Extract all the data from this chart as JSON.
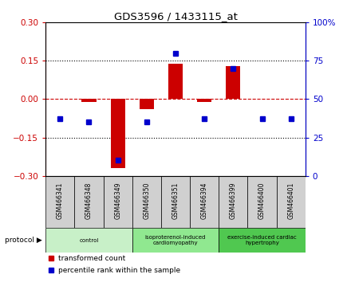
{
  "title": "GDS3596 / 1433115_at",
  "samples": [
    "GSM466341",
    "GSM466348",
    "GSM466349",
    "GSM466350",
    "GSM466351",
    "GSM466394",
    "GSM466399",
    "GSM466400",
    "GSM466401"
  ],
  "transformed_count": [
    0.0,
    -0.01,
    -0.27,
    -0.04,
    0.14,
    -0.01,
    0.13,
    0.0,
    0.0
  ],
  "percentile_rank": [
    37,
    35,
    10,
    35,
    80,
    37,
    70,
    37,
    37
  ],
  "groups": [
    {
      "label": "control",
      "start": 0,
      "end": 3,
      "color": "#c8f0c8"
    },
    {
      "label": "isoproterenol-induced\ncardiomyopathy",
      "start": 3,
      "end": 6,
      "color": "#90e890"
    },
    {
      "label": "exercise-induced cardiac\nhypertrophy",
      "start": 6,
      "end": 9,
      "color": "#50c850"
    }
  ],
  "bar_color": "#cc0000",
  "dot_color": "#0000cc",
  "left_ylim": [
    -0.3,
    0.3
  ],
  "right_ylim": [
    0,
    100
  ],
  "left_yticks": [
    -0.3,
    -0.15,
    0.0,
    0.15,
    0.3
  ],
  "right_yticks": [
    0,
    25,
    50,
    75,
    100
  ],
  "dotted_line_y": [
    0.15,
    -0.15
  ],
  "sample_box_color": "#d0d0d0",
  "background_color": "#ffffff"
}
